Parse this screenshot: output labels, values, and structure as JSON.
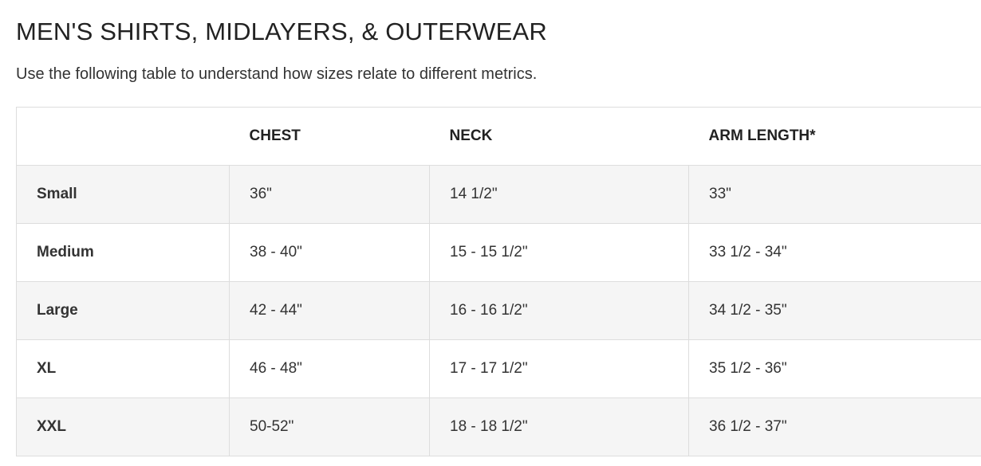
{
  "title": "MEN'S SHIRTS, MIDLAYERS, & OUTERWEAR",
  "subtitle": "Use the following table to understand how sizes relate to different metrics.",
  "table": {
    "headers": [
      "",
      "CHEST",
      "NECK",
      "ARM LENGTH*"
    ],
    "rows": [
      [
        "Small",
        "36\"",
        "14 1/2\"",
        "33\""
      ],
      [
        "Medium",
        "38 - 40\"",
        "15 - 15 1/2\"",
        "33 1/2 - 34\""
      ],
      [
        "Large",
        "42 - 44\"",
        "16 - 16 1/2\"",
        "34 1/2 - 35\""
      ],
      [
        "XL",
        "46 - 48\"",
        "17 - 17 1/2\"",
        "35 1/2 - 36\""
      ],
      [
        "XXL",
        "50-52\"",
        "18 - 18 1/2\"",
        "36 1/2 - 37\""
      ]
    ]
  }
}
